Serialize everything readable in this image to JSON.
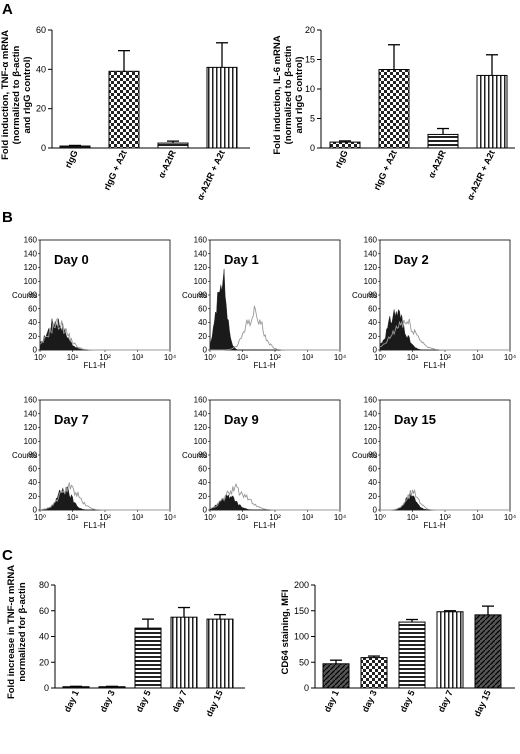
{
  "panels": {
    "A": "A",
    "B": "B",
    "C": "C"
  },
  "chart_data": [
    {
      "id": "a-left",
      "type": "bar",
      "ylabel": [
        "Fold induction, TNF-α mRNA",
        "(normalized to β-actin",
        "and rIgG control)"
      ],
      "categories": [
        "rIgG",
        "rIgG + A2t",
        "α-A2tR",
        "α-A2tR + A2t"
      ],
      "values": [
        1,
        39,
        2.5,
        41
      ],
      "errors": [
        0.3,
        10.5,
        1,
        12.5
      ],
      "patterns": [
        "solid",
        "checker",
        "hstripe",
        "vstripe"
      ],
      "ylim": [
        0,
        60
      ],
      "yticks": [
        0,
        20,
        40,
        60
      ]
    },
    {
      "id": "a-right",
      "type": "bar",
      "ylabel": [
        "Fold induction, IL-6 mRNA",
        "(normalized to β-actin",
        "and rIgG control)"
      ],
      "categories": [
        "rIgG",
        "rIgG + A2t",
        "α-A2tR",
        "α-A2tR + A2t"
      ],
      "values": [
        1,
        13.3,
        2.3,
        12.3
      ],
      "errors": [
        0.2,
        4.2,
        1,
        3.5
      ],
      "patterns": [
        "checker",
        "checker",
        "hstripe",
        "vstripe"
      ],
      "ylim": [
        0,
        20
      ],
      "yticks": [
        0,
        5,
        10,
        15,
        20
      ]
    },
    {
      "id": "b-flow",
      "type": "histogram",
      "ylabel": "Counts",
      "xlabel": "FL1-H",
      "yticks": [
        0,
        20,
        40,
        60,
        80,
        100,
        120,
        140,
        160
      ],
      "ylim": [
        0,
        160
      ],
      "xlim_log10": [
        0,
        4
      ],
      "xticks": [
        "10⁰",
        "10¹",
        "10²",
        "10³",
        "10⁴"
      ],
      "plots": [
        {
          "title": "Day 0",
          "filled": {
            "peak_log": 0.5,
            "width": 0.28,
            "height": 42
          },
          "outline": {
            "peak_log": 0.55,
            "width": 0.3,
            "height": 38
          }
        },
        {
          "title": "Day 1",
          "filled": {
            "peak_log": 0.35,
            "width": 0.15,
            "height": 112
          },
          "outline": {
            "peak_log": 1.35,
            "width": 0.26,
            "height": 52
          }
        },
        {
          "title": "Day 2",
          "filled": {
            "peak_log": 0.5,
            "width": 0.25,
            "height": 55
          },
          "outline": {
            "peak_log": 0.75,
            "width": 0.35,
            "height": 40
          }
        },
        {
          "title": "Day 7",
          "filled": {
            "peak_log": 0.75,
            "width": 0.22,
            "height": 30
          },
          "outline": {
            "peak_log": 0.9,
            "width": 0.3,
            "height": 32
          }
        },
        {
          "title": "Day 9",
          "filled": {
            "peak_log": 0.55,
            "width": 0.25,
            "height": 20
          },
          "outline": {
            "peak_log": 0.8,
            "width": 0.35,
            "height": 30
          }
        },
        {
          "title": "Day 15",
          "filled": {
            "peak_log": 0.95,
            "width": 0.18,
            "height": 20
          },
          "outline": {
            "peak_log": 1.0,
            "width": 0.2,
            "height": 25
          }
        }
      ]
    },
    {
      "id": "c-left",
      "type": "bar",
      "ylabel": [
        "Fold increase in TNF-α mRNA",
        "normalized for β-actin"
      ],
      "categories": [
        "day 1",
        "day 3",
        "day 5",
        "day 7",
        "day 15"
      ],
      "values": [
        1,
        1,
        46.5,
        55,
        53.5
      ],
      "errors": [
        0.3,
        0.3,
        7,
        7.5,
        3.5
      ],
      "patterns": [
        "solid",
        "solid",
        "hstripe",
        "vstripe",
        "vstripe"
      ],
      "ylim": [
        0,
        80
      ],
      "yticks": [
        0,
        20,
        40,
        60,
        80
      ]
    },
    {
      "id": "c-right",
      "type": "bar",
      "ylabel": [
        "CD64 staining, MFI"
      ],
      "categories": [
        "day 1",
        "day 3",
        "day 5",
        "day 7",
        "day 15"
      ],
      "values": [
        47,
        59,
        128,
        148,
        142
      ],
      "errors": [
        7,
        3,
        5,
        2,
        17
      ],
      "patterns": [
        "diag",
        "checker",
        "hstripe",
        "vstripe",
        "diag"
      ],
      "ylim": [
        0,
        200
      ],
      "yticks": [
        0,
        50,
        100,
        150,
        200
      ]
    }
  ]
}
